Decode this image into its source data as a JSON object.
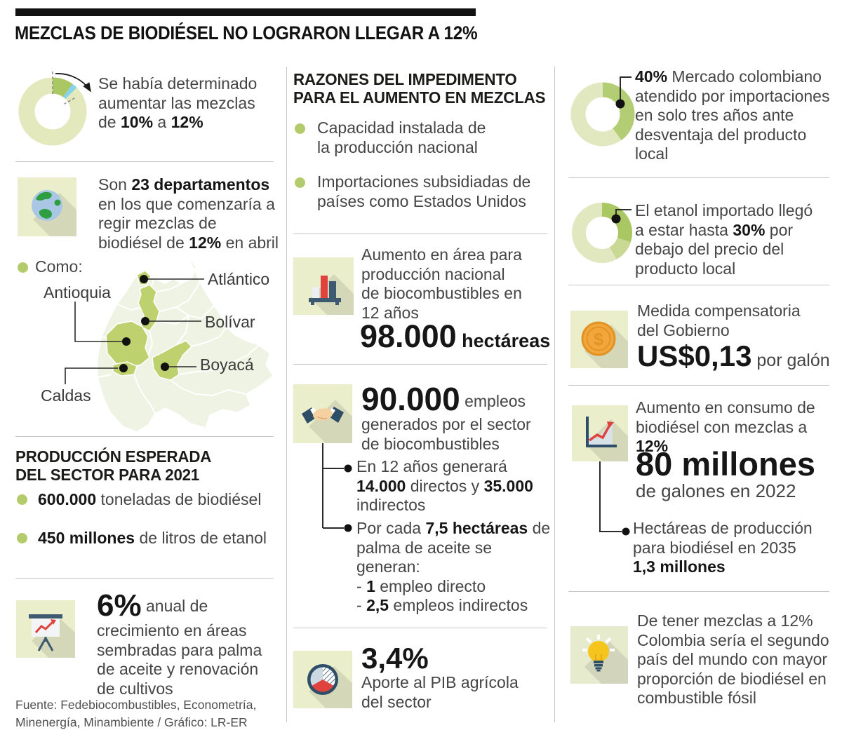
{
  "palette": {
    "olive": "#b4cb6c",
    "ring_pale": "#e3e9bc",
    "ring_green": "#a9c763",
    "ring_blue": "#87d3ee",
    "icon_bg": "#ebeecb",
    "map_base": "#eff3e3",
    "map_highlight": "#bdd16e",
    "red": "#e0433d",
    "navy": "#2e4d66",
    "coin_orange": "#f2a63b",
    "bulb_yellow": "#f6c51d"
  },
  "header": {
    "title": "MEZCLAS DE BIODIÉSEL NO LOGRARON LLEGAR A 12%"
  },
  "left": {
    "determinado": {
      "segments": [
        {
          "t": "Se había determinado aumentar las mezclas de "
        },
        {
          "t": "10%",
          "b": true
        },
        {
          "t": " a "
        },
        {
          "t": "12%",
          "b": true
        }
      ]
    },
    "departamentos": {
      "segments": [
        {
          "t": "Son "
        },
        {
          "t": "23 departamentos",
          "b": true
        },
        {
          "t": " en los que comenzaría a regir mezclas de biodiésel de "
        },
        {
          "t": "12%",
          "b": true
        },
        {
          "t": " en abril"
        }
      ]
    },
    "como_label": "Como:",
    "map": {
      "labels": {
        "atlantico": "Atlántico",
        "antioquia": "Antioquia",
        "bolivar": "Bolívar",
        "boyaca": "Boyacá",
        "caldas": "Caldas"
      }
    },
    "produccion_heading": "PRODUCCIÓN ESPERADA\nDEL SECTOR PARA 2021",
    "bullet_biodiesel": {
      "segments": [
        {
          "t": "600.000",
          "b": true
        },
        {
          "t": " toneladas de biodiésel"
        }
      ]
    },
    "bullet_etanol": {
      "segments": [
        {
          "t": "450 millones",
          "b": true
        },
        {
          "t": " de litros de etanol"
        }
      ]
    },
    "crecimiento": {
      "number": "6%",
      "text": " anual de crecimiento en áreas sembradas para palma de aceite y renovación de cultivos"
    },
    "fuente": "Fuente: Fedebiocombustibles, Econometría,\nMinenergía, Minambiente  / Gráfico: LR-ER"
  },
  "middle": {
    "razones_heading": "RAZONES DEL IMPEDIMENTO\nPARA EL AUMENTO EN MEZCLAS",
    "razon1": "Capacidad instalada de\nla producción nacional",
    "razon2": "Importaciones subsidiadas de\npaíses como Estados Unidos",
    "area": {
      "text": "Aumento en área para\nproducción nacional\nde biocombustibles en\n12 años",
      "number": "98.000",
      "unit": " hectáreas"
    },
    "empleos": {
      "number": "90.000",
      "text": " empleos generados por el sector de biocombustibles",
      "sub1": {
        "segments": [
          {
            "t": "En 12 años generará "
          },
          {
            "t": "14.000",
            "b": true
          },
          {
            "t": " directos y "
          },
          {
            "t": "35.000",
            "b": true
          },
          {
            "t": " indirectos"
          }
        ]
      },
      "sub2": {
        "segments": [
          {
            "t": "Por cada "
          },
          {
            "t": "7,5 hectáreas",
            "b": true
          },
          {
            "t": " de palma de aceite se generan:\n- "
          },
          {
            "t": "1",
            "b": true
          },
          {
            "t": " empleo directo\n- "
          },
          {
            "t": "2,5",
            "b": true
          },
          {
            "t": " empleos indirectos"
          }
        ]
      }
    },
    "pib": {
      "number": "3,4%",
      "text": "Aporte al PIB agrícola\ndel sector"
    }
  },
  "right": {
    "mercado": {
      "segments": [
        {
          "t": "40%",
          "b": true
        },
        {
          "t": " Mercado colombiano atendido por importaciones en solo tres años ante desventaja del producto local"
        }
      ]
    },
    "etanol": {
      "segments": [
        {
          "t": "El etanol importado llegó a estar hasta "
        },
        {
          "t": "30%",
          "b": true
        },
        {
          "t": " por debajo del precio del producto local"
        }
      ]
    },
    "medida": {
      "text": "Medida compensatoria\ndel Gobierno",
      "number": "US$0,13",
      "unit": " por galón"
    },
    "consumo": {
      "segments": [
        {
          "t": "Aumento en consumo de biodiésel con mezclas a "
        },
        {
          "t": "12%",
          "b": true
        }
      ],
      "big": "80 millones",
      "sub": "de galones en 2022",
      "hectareas": {
        "segments": [
          {
            "t": "Hectáreas de producción para biodiésel en 2035\n"
          },
          {
            "t": "1,3 millones",
            "b": true
          }
        ]
      }
    },
    "mezclas12": "De tener mezclas a 12% Colombia sería el segundo país del mundo con mayor proporción de biodiésel en combustible fósil"
  },
  "chart_data": [
    {
      "type": "pie",
      "id": "donut-mezclas",
      "title": "Se había determinado aumentar las mezclas de 10% a 12%",
      "segments": [
        {
          "label": "mezcla actual 10%",
          "value": 10,
          "color": "#a9c763"
        },
        {
          "label": "aumento a 12%",
          "value": 2,
          "color": "#87d3ee"
        },
        {
          "label": "resto",
          "value": 88,
          "color": "#e3e9bc"
        }
      ]
    },
    {
      "type": "pie",
      "id": "donut-mercado",
      "title": "Mercado colombiano atendido por importaciones",
      "segments": [
        {
          "label": "importaciones",
          "value": 40,
          "color": "#b3cd74"
        },
        {
          "label": "resto",
          "value": 60,
          "color": "#e1e8c0"
        }
      ]
    },
    {
      "type": "pie",
      "id": "donut-etanol",
      "title": "Etanol importado por debajo del precio local",
      "segments": [
        {
          "label": "debajo del precio",
          "value": 30,
          "color": "#a9c763"
        },
        {
          "label": "margen",
          "value": 12,
          "color": "#c9d892"
        },
        {
          "label": "resto",
          "value": 58,
          "color": "#e1e8c0"
        }
      ]
    }
  ]
}
